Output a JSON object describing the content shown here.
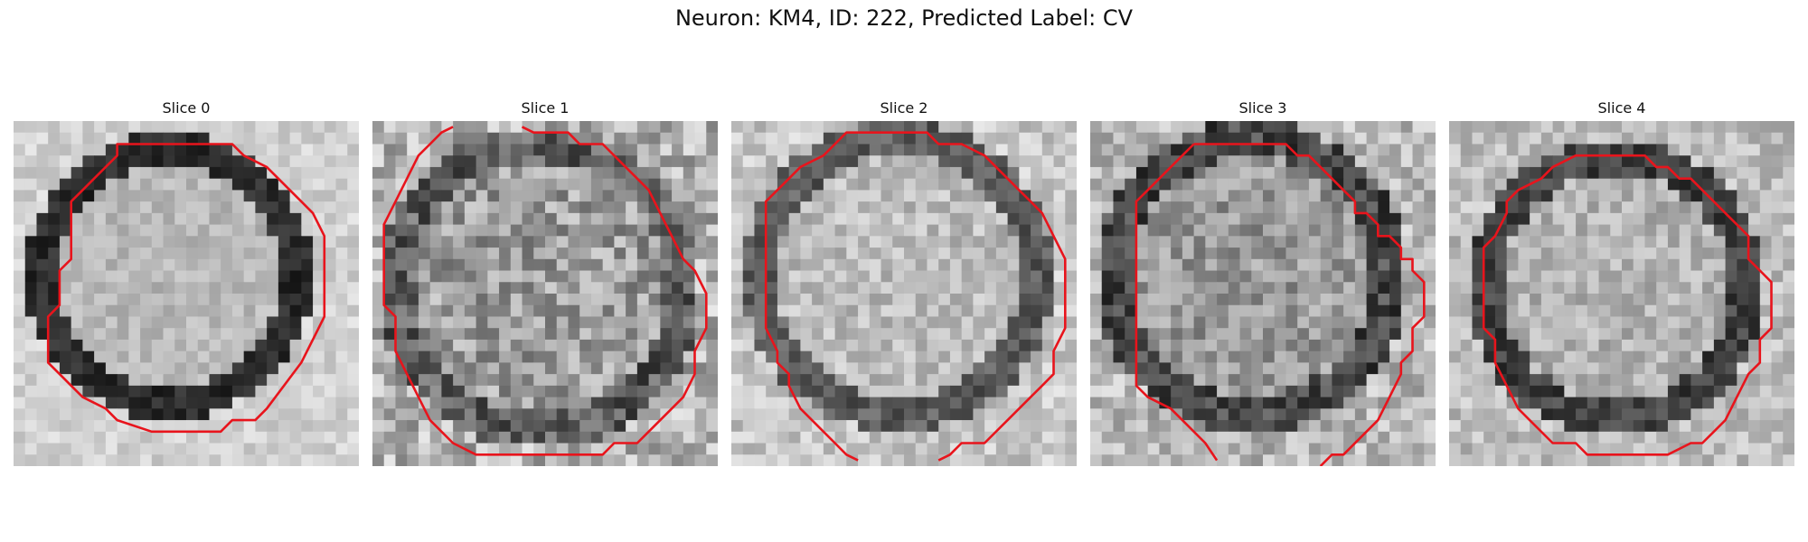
{
  "figure": {
    "title": "Neuron: KM4, ID: 222, Predicted Label: CV"
  },
  "panels": [
    {
      "title": "Slice 0"
    },
    {
      "title": "Slice 1"
    },
    {
      "title": "Slice 2"
    },
    {
      "title": "Slice 3"
    },
    {
      "title": "Slice 4"
    }
  ],
  "colors": {
    "contour": "#e8141c",
    "background": "#ffffff"
  }
}
